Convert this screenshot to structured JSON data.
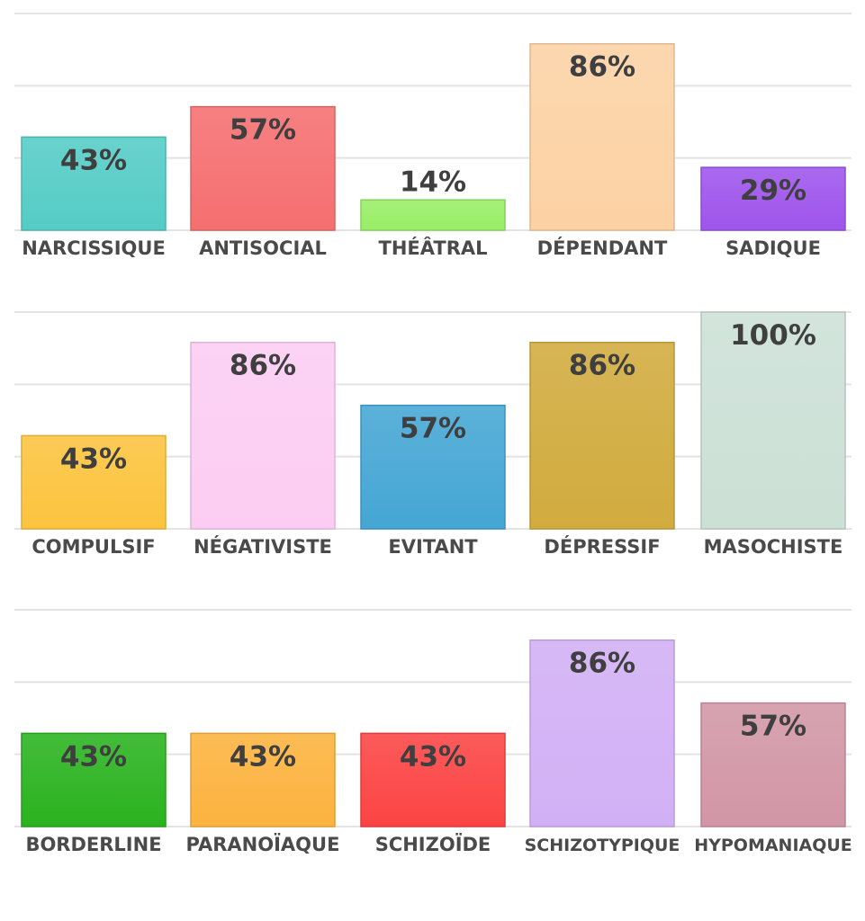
{
  "chart_data": [
    {
      "type": "bar",
      "categories": [
        "NARCISSIQUE",
        "ANTISOCIAL",
        "THÉÂTRAL",
        "DÉPENDANT",
        "SADIQUE"
      ],
      "values": [
        43,
        57,
        14,
        86,
        29
      ],
      "value_labels": [
        "43%",
        "57%",
        "14%",
        "86%",
        "29%"
      ],
      "colors": [
        "#55ccc6",
        "#f56f70",
        "#99ee66",
        "#fcd2a4",
        "#9e55ec"
      ],
      "ylim": [
        0,
        100
      ],
      "grid": true
    },
    {
      "type": "bar",
      "categories": [
        "COMPULSIF",
        "NÉGATIVISTE",
        "EVITANT",
        "DÉPRESSIF",
        "MASOCHISTE"
      ],
      "values": [
        43,
        86,
        57,
        86,
        100
      ],
      "value_labels": [
        "43%",
        "86%",
        "57%",
        "86%",
        "100%"
      ],
      "colors": [
        "#fcc43e",
        "#fccdf2",
        "#45a6d4",
        "#d1ab3e",
        "#cce0d6"
      ],
      "ylim": [
        0,
        100
      ],
      "grid": true
    },
    {
      "type": "bar",
      "categories": [
        "BORDERLINE",
        "PARANOÏAQUE",
        "SCHIZOÏDE",
        "SCHIZOTYPIQUE",
        "HYPOMANIAQUE"
      ],
      "values": [
        43,
        43,
        43,
        86,
        57
      ],
      "value_labels": [
        "43%",
        "43%",
        "43%",
        "86%",
        "57%"
      ],
      "colors": [
        "#2ab31f",
        "#fcb33e",
        "#fc4444",
        "#d2b0f5",
        "#d296a6"
      ],
      "ylim": [
        0,
        100
      ],
      "grid": true
    }
  ]
}
